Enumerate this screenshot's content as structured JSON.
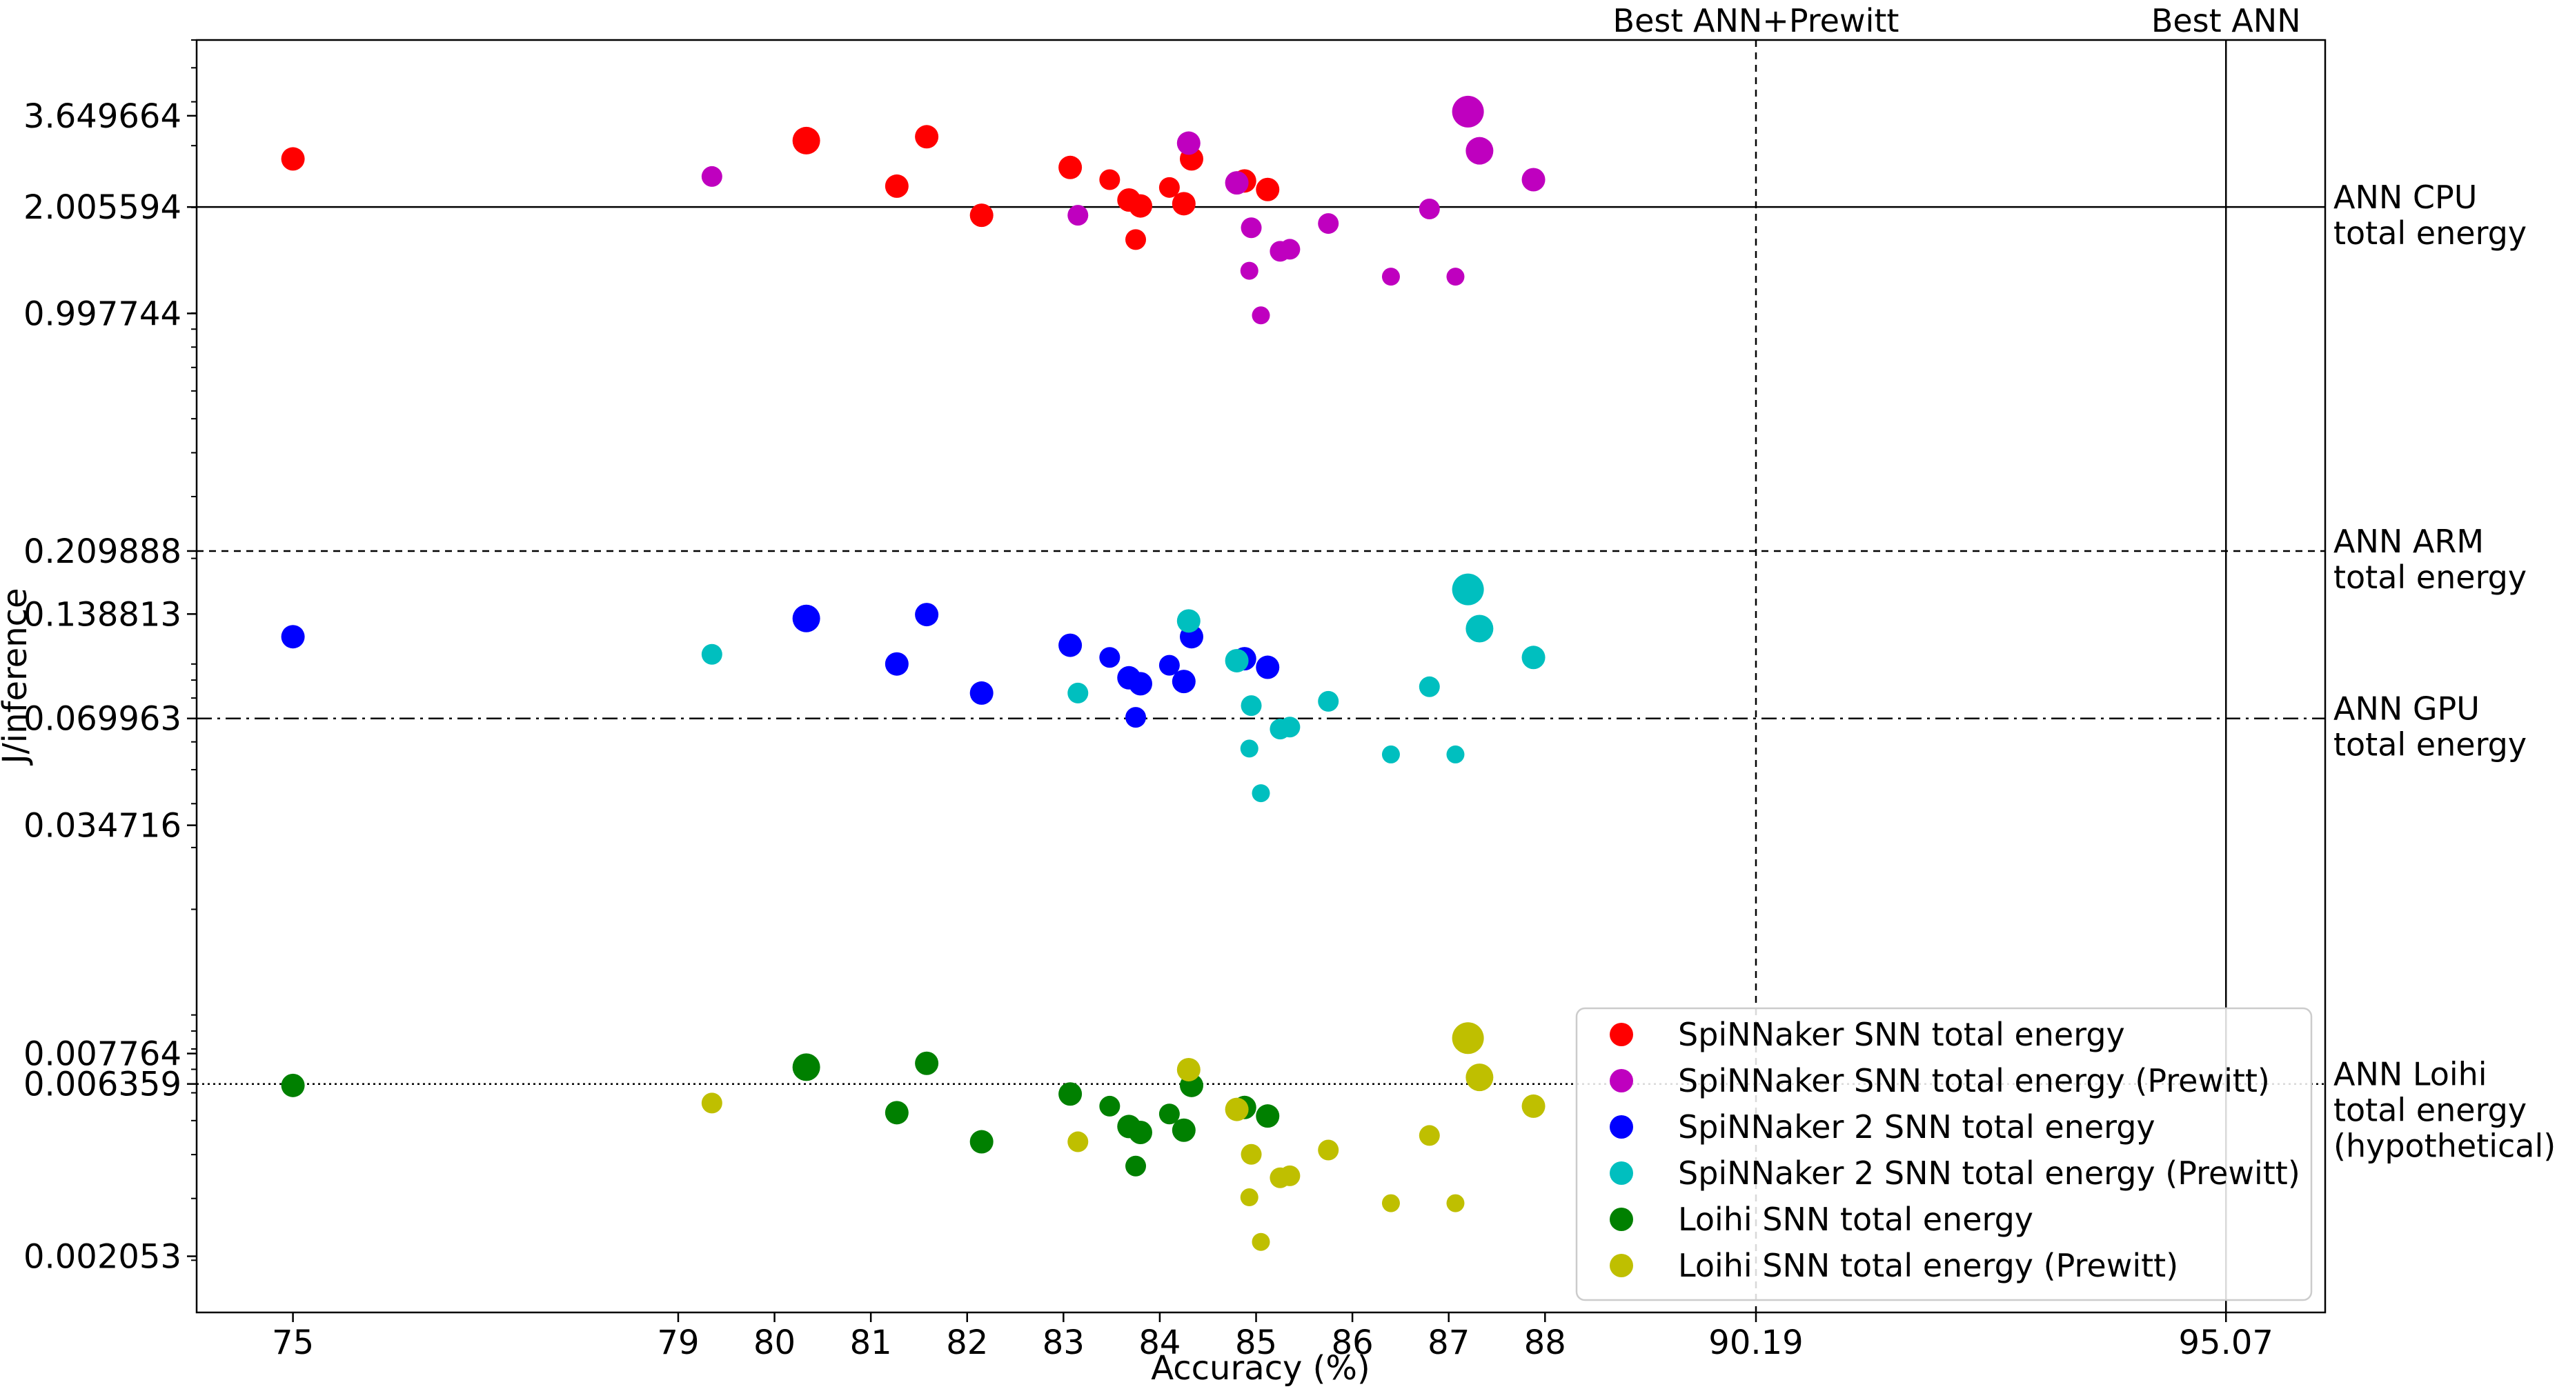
{
  "chart_data": {
    "type": "scatter",
    "title": "",
    "xlabel": "Accuracy (%)",
    "ylabel": "J/inference",
    "yscale": "log",
    "xlim": [
      74,
      96.1
    ],
    "ylim": [
      0.00142,
      6.0
    ],
    "x_ticks": [
      "75",
      "79",
      "80",
      "81",
      "82",
      "83",
      "84",
      "85",
      "86",
      "87",
      "88",
      "90.19",
      "95.07"
    ],
    "y_ticks": [
      "3.649664",
      "2.005594",
      "0.997744",
      "0.209888",
      "0.138813",
      "0.069963",
      "0.034716",
      "0.007764",
      "0.006359",
      "0.002053"
    ],
    "reference_lines_h": [
      {
        "value": 2.005594,
        "label": [
          "ANN CPU",
          "total energy"
        ],
        "style": "solid"
      },
      {
        "value": 0.209888,
        "label": [
          "ANN ARM",
          "total energy"
        ],
        "style": "dashed"
      },
      {
        "value": 0.069963,
        "label": [
          "ANN GPU",
          "total energy"
        ],
        "style": "dashdot"
      },
      {
        "value": 0.006359,
        "label": [
          "ANN Loihi",
          "total energy",
          "(hypothetical)"
        ],
        "style": "dotted"
      }
    ],
    "reference_lines_v": [
      {
        "value": 90.19,
        "label": "Best ANN+Prewitt",
        "style": "dashed"
      },
      {
        "value": 95.07,
        "label": "Best ANN",
        "style": "solid"
      }
    ],
    "legend_position": "lower-right",
    "series": [
      {
        "name": "SpiNNaker SNN total energy",
        "color": "#ff0000",
        "family": "base",
        "scale": 1.0
      },
      {
        "name": "SpiNNaker SNN total energy (Prewitt)",
        "color": "#bf00bf",
        "family": "prewitt",
        "scale": 1.0
      },
      {
        "name": "SpiNNaker 2 SNN total energy",
        "color": "#0000ff",
        "family": "base",
        "scale": 0.0435
      },
      {
        "name": "SpiNNaker 2 SNN total energy (Prewitt)",
        "color": "#00bfbf",
        "family": "prewitt",
        "scale": 0.0435
      },
      {
        "name": "Loihi SNN total energy",
        "color": "#008000",
        "family": "base",
        "scale": 0.00229
      },
      {
        "name": "Loihi SNN total energy (Prewitt)",
        "color": "#bfbf00",
        "family": "prewitt",
        "scale": 0.00229
      }
    ],
    "point_sets": {
      "base": [
        {
          "x": 75.0,
          "y": 2.75,
          "size": 3
        },
        {
          "x": 80.33,
          "y": 3.1,
          "size": 4
        },
        {
          "x": 81.27,
          "y": 2.3,
          "size": 3
        },
        {
          "x": 81.58,
          "y": 3.18,
          "size": 3
        },
        {
          "x": 82.15,
          "y": 1.9,
          "size": 3
        },
        {
          "x": 83.07,
          "y": 2.6,
          "size": 3
        },
        {
          "x": 83.48,
          "y": 2.4,
          "size": 2
        },
        {
          "x": 83.68,
          "y": 2.1,
          "size": 3
        },
        {
          "x": 83.75,
          "y": 1.62,
          "size": 2
        },
        {
          "x": 83.8,
          "y": 2.02,
          "size": 3
        },
        {
          "x": 84.1,
          "y": 2.28,
          "size": 2
        },
        {
          "x": 84.25,
          "y": 2.05,
          "size": 3
        },
        {
          "x": 84.33,
          "y": 2.75,
          "size": 3
        },
        {
          "x": 84.88,
          "y": 2.38,
          "size": 3
        },
        {
          "x": 85.12,
          "y": 2.25,
          "size": 3
        }
      ],
      "prewitt": [
        {
          "x": 79.35,
          "y": 2.45,
          "size": 2
        },
        {
          "x": 83.15,
          "y": 1.9,
          "size": 2
        },
        {
          "x": 84.3,
          "y": 3.05,
          "size": 3
        },
        {
          "x": 84.8,
          "y": 2.35,
          "size": 3
        },
        {
          "x": 84.95,
          "y": 1.75,
          "size": 2
        },
        {
          "x": 84.93,
          "y": 1.32,
          "size": 1
        },
        {
          "x": 85.05,
          "y": 0.985,
          "size": 1
        },
        {
          "x": 85.25,
          "y": 1.5,
          "size": 2
        },
        {
          "x": 85.35,
          "y": 1.52,
          "size": 2
        },
        {
          "x": 85.75,
          "y": 1.8,
          "size": 2
        },
        {
          "x": 86.4,
          "y": 1.27,
          "size": 1
        },
        {
          "x": 86.8,
          "y": 1.98,
          "size": 2
        },
        {
          "x": 87.07,
          "y": 1.27,
          "size": 1
        },
        {
          "x": 87.2,
          "y": 3.75,
          "size": 5
        },
        {
          "x": 87.32,
          "y": 2.9,
          "size": 4
        },
        {
          "x": 87.88,
          "y": 2.4,
          "size": 3
        }
      ]
    }
  },
  "legend": {
    "items": [
      "SpiNNaker SNN total energy",
      "SpiNNaker SNN total energy (Prewitt)",
      "SpiNNaker 2 SNN total energy",
      "SpiNNaker 2 SNN total energy (Prewitt)",
      "Loihi SNN total energy",
      "Loihi SNN total energy (Prewitt)"
    ]
  }
}
